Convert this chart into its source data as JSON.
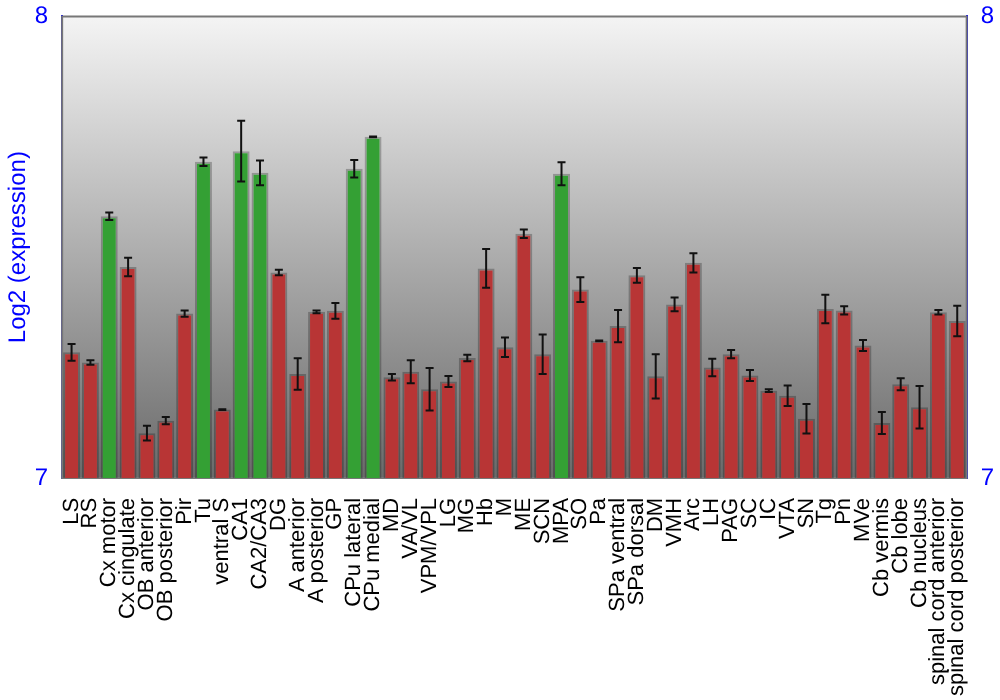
{
  "chart_data": {
    "type": "bar",
    "ylabel": "Log2 (expression)",
    "categories": [
      "LS",
      "RS",
      "Cx motor",
      "Cx cingulate",
      "OB anterior",
      "OB posterior",
      "Pir",
      "Tu",
      "ventral S",
      "CA1",
      "CA2/CA3",
      "DG",
      "A anterior",
      "A posterior",
      "GP",
      "CPu lateral",
      "CPu medial",
      "MD",
      "VA/VL",
      "VPM/VPL",
      "LG",
      "MG",
      "Hb",
      "M",
      "ME",
      "SCN",
      "MPA",
      "SO",
      "Pa",
      "SPa ventral",
      "SPa dorsal",
      "DM",
      "VMH",
      "Arc",
      "LH",
      "PAG",
      "SC",
      "IC",
      "VTA",
      "SN",
      "Tg",
      "Pn",
      "MVe",
      "Cb vermis",
      "Cb lobe",
      "Cb nucleus",
      "spinal cord anterior",
      "spinal cord posterior"
    ],
    "values": [
      7.272,
      7.25,
      7.567,
      7.457,
      7.097,
      7.124,
      7.356,
      7.685,
      7.148,
      7.708,
      7.661,
      7.445,
      7.225,
      7.36,
      7.362,
      7.67,
      7.739,
      7.218,
      7.23,
      7.192,
      7.209,
      7.26,
      7.454,
      7.283,
      7.529,
      7.268,
      7.659,
      7.408,
      7.297,
      7.329,
      7.439,
      7.22,
      7.376,
      7.466,
      7.239,
      7.268,
      7.222,
      7.189,
      7.178,
      7.128,
      7.366,
      7.363,
      7.287,
      7.119,
      7.203,
      7.153,
      7.359,
      7.34
    ],
    "errors": [
      0.018,
      0.005,
      0.008,
      0.02,
      0.016,
      0.008,
      0.007,
      0.009,
      0.001,
      0.066,
      0.027,
      0.006,
      0.034,
      0.003,
      0.017,
      0.019,
      0.001,
      0.007,
      0.025,
      0.046,
      0.012,
      0.007,
      0.042,
      0.021,
      0.009,
      0.043,
      0.025,
      0.027,
      0.001,
      0.035,
      0.016,
      0.048,
      0.015,
      0.021,
      0.019,
      0.009,
      0.012,
      0.003,
      0.022,
      0.032,
      0.031,
      0.009,
      0.012,
      0.024,
      0.013,
      0.046,
      0.005,
      0.033
    ],
    "colors": [
      "#b83535",
      "#b83535",
      "#34a034",
      "#b83535",
      "#b83535",
      "#b83535",
      "#b83535",
      "#34a034",
      "#b83535",
      "#34a034",
      "#34a034",
      "#b83535",
      "#b83535",
      "#b83535",
      "#b83535",
      "#34a034",
      "#34a034",
      "#b83535",
      "#b83535",
      "#b83535",
      "#b83535",
      "#b83535",
      "#b83535",
      "#b83535",
      "#b83535",
      "#b83535",
      "#34a034",
      "#b83535",
      "#b83535",
      "#b83535",
      "#b83535",
      "#b83535",
      "#b83535",
      "#b83535",
      "#b83535",
      "#b83535",
      "#b83535",
      "#b83535",
      "#b83535",
      "#b83535",
      "#b83535",
      "#b83535",
      "#b83535",
      "#b83535",
      "#b83535",
      "#b83535",
      "#b83535",
      "#b83535"
    ],
    "ylim": [
      7,
      8
    ],
    "yticks": [
      7,
      8
    ],
    "y2lim": [
      7,
      8
    ],
    "y2ticks": [
      7,
      8
    ],
    "grid": false,
    "legend": false
  }
}
